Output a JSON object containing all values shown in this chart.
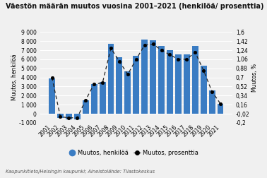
{
  "title": "Väestön määrän muutos vuosina 2001–2021 (henkilöä/ prosenttia)",
  "years": [
    2001,
    2002,
    2003,
    2004,
    2005,
    2006,
    2007,
    2008,
    2009,
    2010,
    2011,
    2012,
    2013,
    2014,
    2015,
    2016,
    2017,
    2018,
    2019,
    2020,
    2021
  ],
  "henkiloa": [
    3900,
    -500,
    -600,
    -600,
    1500,
    3300,
    3500,
    7700,
    6200,
    4700,
    6400,
    8200,
    8100,
    7500,
    7000,
    6500,
    6500,
    7500,
    5300,
    2600,
    1100
  ],
  "prosenttia": [
    0.7,
    -0.08,
    -0.1,
    -0.1,
    0.25,
    0.57,
    0.59,
    1.28,
    1.02,
    0.76,
    1.06,
    1.34,
    1.36,
    1.24,
    1.15,
    1.06,
    1.06,
    1.2,
    0.84,
    0.42,
    0.18
  ],
  "bar_color": "#3a7cc3",
  "line_color": "#222222",
  "ylabel_left": "Muutos, henkilöä",
  "ylabel_right": "Muutos, %",
  "ylim_left": [
    -1000,
    9000
  ],
  "ylim_right": [
    -0.2,
    1.6
  ],
  "yticks_left": [
    -1000,
    0,
    1000,
    2000,
    3000,
    4000,
    5000,
    6000,
    7000,
    8000,
    9000
  ],
  "yticks_right": [
    -0.2,
    -0.02,
    0.16,
    0.34,
    0.52,
    0.7,
    0.88,
    1.06,
    1.24,
    1.42,
    1.6
  ],
  "ytick_labels_right": [
    "-0,2",
    "-0,02",
    "0,16",
    "0,34",
    "0,52",
    "0,7",
    "0,88",
    "1,06",
    "1,24",
    "1,42",
    "1,6"
  ],
  "ytick_labels_left": [
    "-1 000",
    "0",
    "1 000",
    "2 000",
    "3 000",
    "4 000",
    "5 000",
    "6 000",
    "7 000",
    "8 000",
    "9 000"
  ],
  "legend_label_bar": "Muutos, henkilöä",
  "legend_label_line": "Muutos, prosenttia",
  "caption": "Kaupunkitieto/Helsingin kaupunki; Aineistolähde: Tilastokeskus",
  "background_color": "#f0f0f0",
  "grid_color": "#ffffff",
  "title_fontsize": 7.0,
  "axis_fontsize": 5.5,
  "legend_fontsize": 6.0
}
